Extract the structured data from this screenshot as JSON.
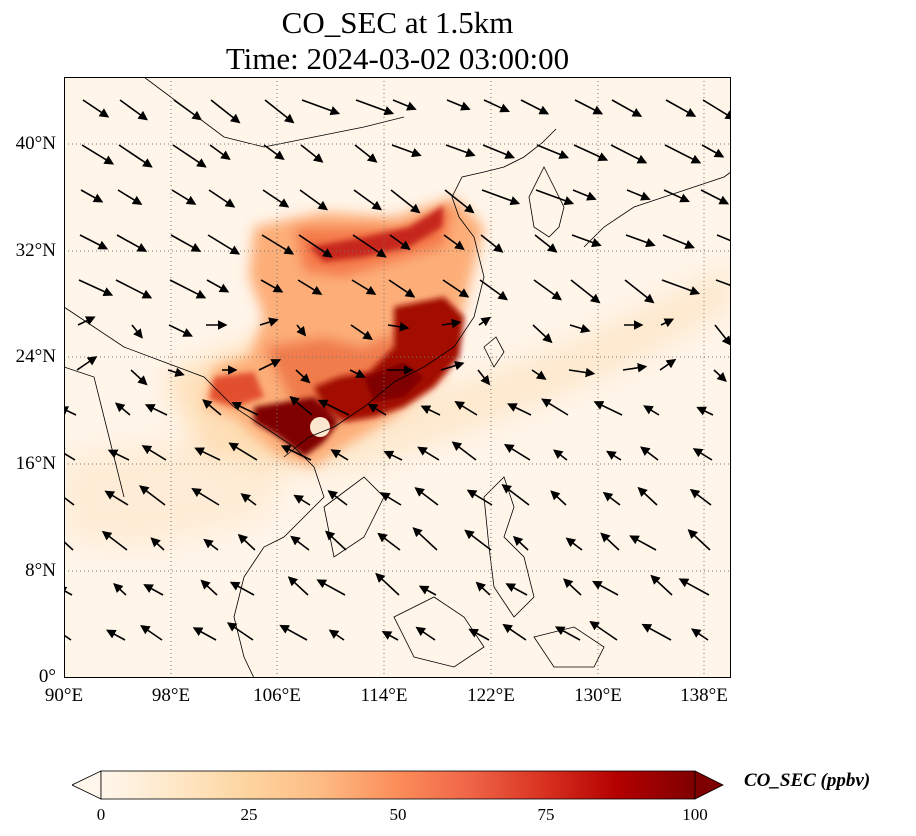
{
  "title": {
    "line1": "CO_SEC at 1.5km",
    "line2": "Time: 2024-03-02 03:00:00"
  },
  "map": {
    "projection": "PlateCarree",
    "lon_range": [
      90,
      140
    ],
    "lat_range": [
      0,
      45
    ],
    "gridlines": "dotted",
    "lon_ticks": [
      "90°E",
      "98°E",
      "106°E",
      "114°E",
      "122°E",
      "130°E",
      "138°E"
    ],
    "lat_ticks": [
      "0°",
      "8°N",
      "16°N",
      "24°N",
      "32°N",
      "40°N"
    ],
    "field": "CO_SEC concentration (filled)",
    "overlay": "wind vectors (black arrows)"
  },
  "colorbar": {
    "label": "CO_SEC (ppbv)",
    "ticks": [
      "0",
      "25",
      "50",
      "75",
      "100"
    ],
    "range": [
      0,
      100
    ],
    "extend": "both",
    "colormap": "OrRd",
    "colors": [
      "#fff7ec",
      "#fee8c8",
      "#fdd49e",
      "#fdbb84",
      "#fc8d59",
      "#ef6548",
      "#d7301f",
      "#b30000",
      "#7f0000"
    ]
  }
}
